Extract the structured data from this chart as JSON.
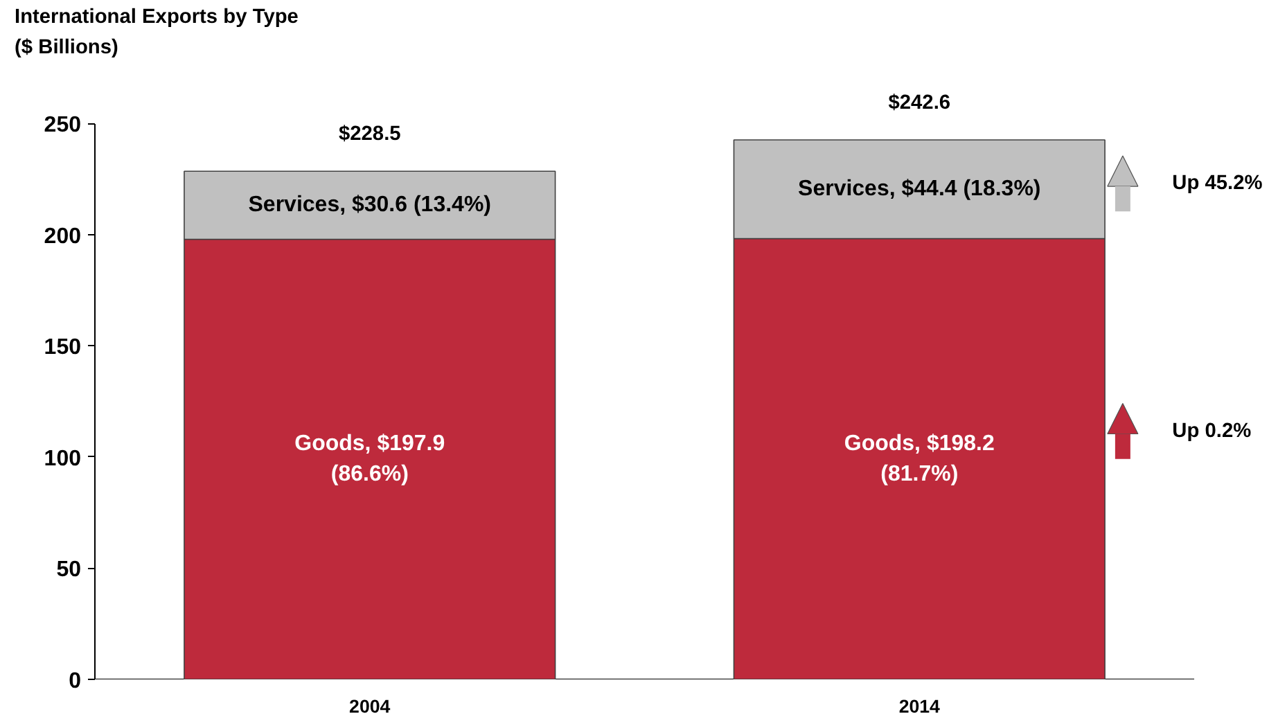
{
  "chart_data": {
    "type": "bar",
    "title": "International Exports by Type",
    "subtitle": "($ Billions)",
    "categories": [
      "2004",
      "2014"
    ],
    "stacked": true,
    "series": [
      {
        "color": "#be2a3c",
        "values": [
          197.9,
          198.2
        ],
        "value_labels": [
          "Goods, $197.9\n(86.6%)",
          "Goods, $198.2\n(81.7%)"
        ]
      },
      {
        "color": "#c0c0c0",
        "values": [
          30.6,
          44.4
        ],
        "value_labels": [
          "Services, $30.6 (13.4%)",
          "Services, $44.4 (18.3%)"
        ]
      }
    ],
    "totals": [
      "$228.5",
      "$242.6"
    ],
    "annotations": [
      "Up 45.2%",
      "Up 0.2%"
    ],
    "ylim": [
      0,
      250
    ],
    "yticks": [
      0,
      50,
      100,
      150,
      200,
      250
    ],
    "grid": false
  }
}
